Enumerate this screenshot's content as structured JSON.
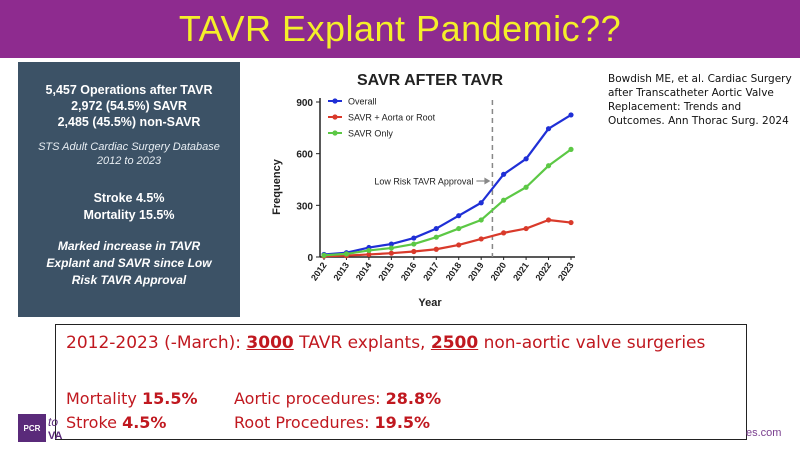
{
  "slide": {
    "title": "TAVR Explant Pandemic??",
    "colors": {
      "title_bar": "#8e2b8f",
      "title_text": "#f4ef2a",
      "panel": "#3c5266",
      "highlight_red": "#c0181f"
    }
  },
  "left_panel": {
    "stats": [
      "5,457 Operations after TAVR",
      "2,972 (54.5%) SAVR",
      "2,485 (45.5%) non-SAVR"
    ],
    "database": [
      "STS Adult Cardiac Surgery Database",
      "2012 to 2023"
    ],
    "outcomes": [
      "Stroke 4.5%",
      "Mortality 15.5%"
    ],
    "conclusion": [
      "Marked increase in TAVR",
      "Explant and SAVR since Low",
      "Risk TAVR Approval"
    ]
  },
  "citation": "Bowdish ME, et al. Cardiac Surgery after Transcatheter Aortic Valve Replacement: Trends and Outcomes. Ann Thorac Surg. 2024",
  "chart_data": {
    "type": "line",
    "title": "SAVR AFTER TAVR",
    "xlabel": "Year",
    "ylabel": "Frequency",
    "x": [
      "2012",
      "2013",
      "2014",
      "2015",
      "2016",
      "2017",
      "2018",
      "2019",
      "2020",
      "2021",
      "2022",
      "2023"
    ],
    "ylim": [
      0,
      900
    ],
    "yticks": [
      0,
      300,
      600,
      900
    ],
    "series": [
      {
        "name": "Overall",
        "color": "#1f2fd6",
        "values": [
          15,
          25,
          55,
          75,
          110,
          165,
          240,
          315,
          480,
          570,
          745,
          825
        ]
      },
      {
        "name": "SAVR + Aorta or Root",
        "color": "#d93a2b",
        "values": [
          5,
          8,
          15,
          22,
          32,
          45,
          70,
          105,
          140,
          165,
          215,
          200
        ]
      },
      {
        "name": "SAVR Only",
        "color": "#5cc845",
        "values": [
          10,
          18,
          38,
          52,
          75,
          115,
          165,
          215,
          330,
          405,
          530,
          625
        ]
      }
    ],
    "annotation": {
      "label": "Low Risk TAVR Approval",
      "x_between": [
        "2019",
        "2020"
      ]
    },
    "legend_position": "top-left",
    "grid": false
  },
  "bottom_box": {
    "line1_prefix": "2012-2023 (-March): ",
    "explants_value": "3000",
    "line1_mid": " TAVR explants, ",
    "nonaortic_value": "2500",
    "line1_suffix": " non-aortic valve surgeries",
    "mortality_label": "Mortality ",
    "mortality_value": "15.5%",
    "stroke_label": "Stroke ",
    "stroke_value": "4.5%",
    "aortic_label": "Aortic procedures: ",
    "aortic_value": "28.8%",
    "root_label": "Root Procedures: ",
    "root_value": "19.5%"
  },
  "footer": {
    "logo_text": "PCR",
    "logo_suffix": "to",
    "logo_suffix2": "VA",
    "url_fragment": "es.com"
  }
}
